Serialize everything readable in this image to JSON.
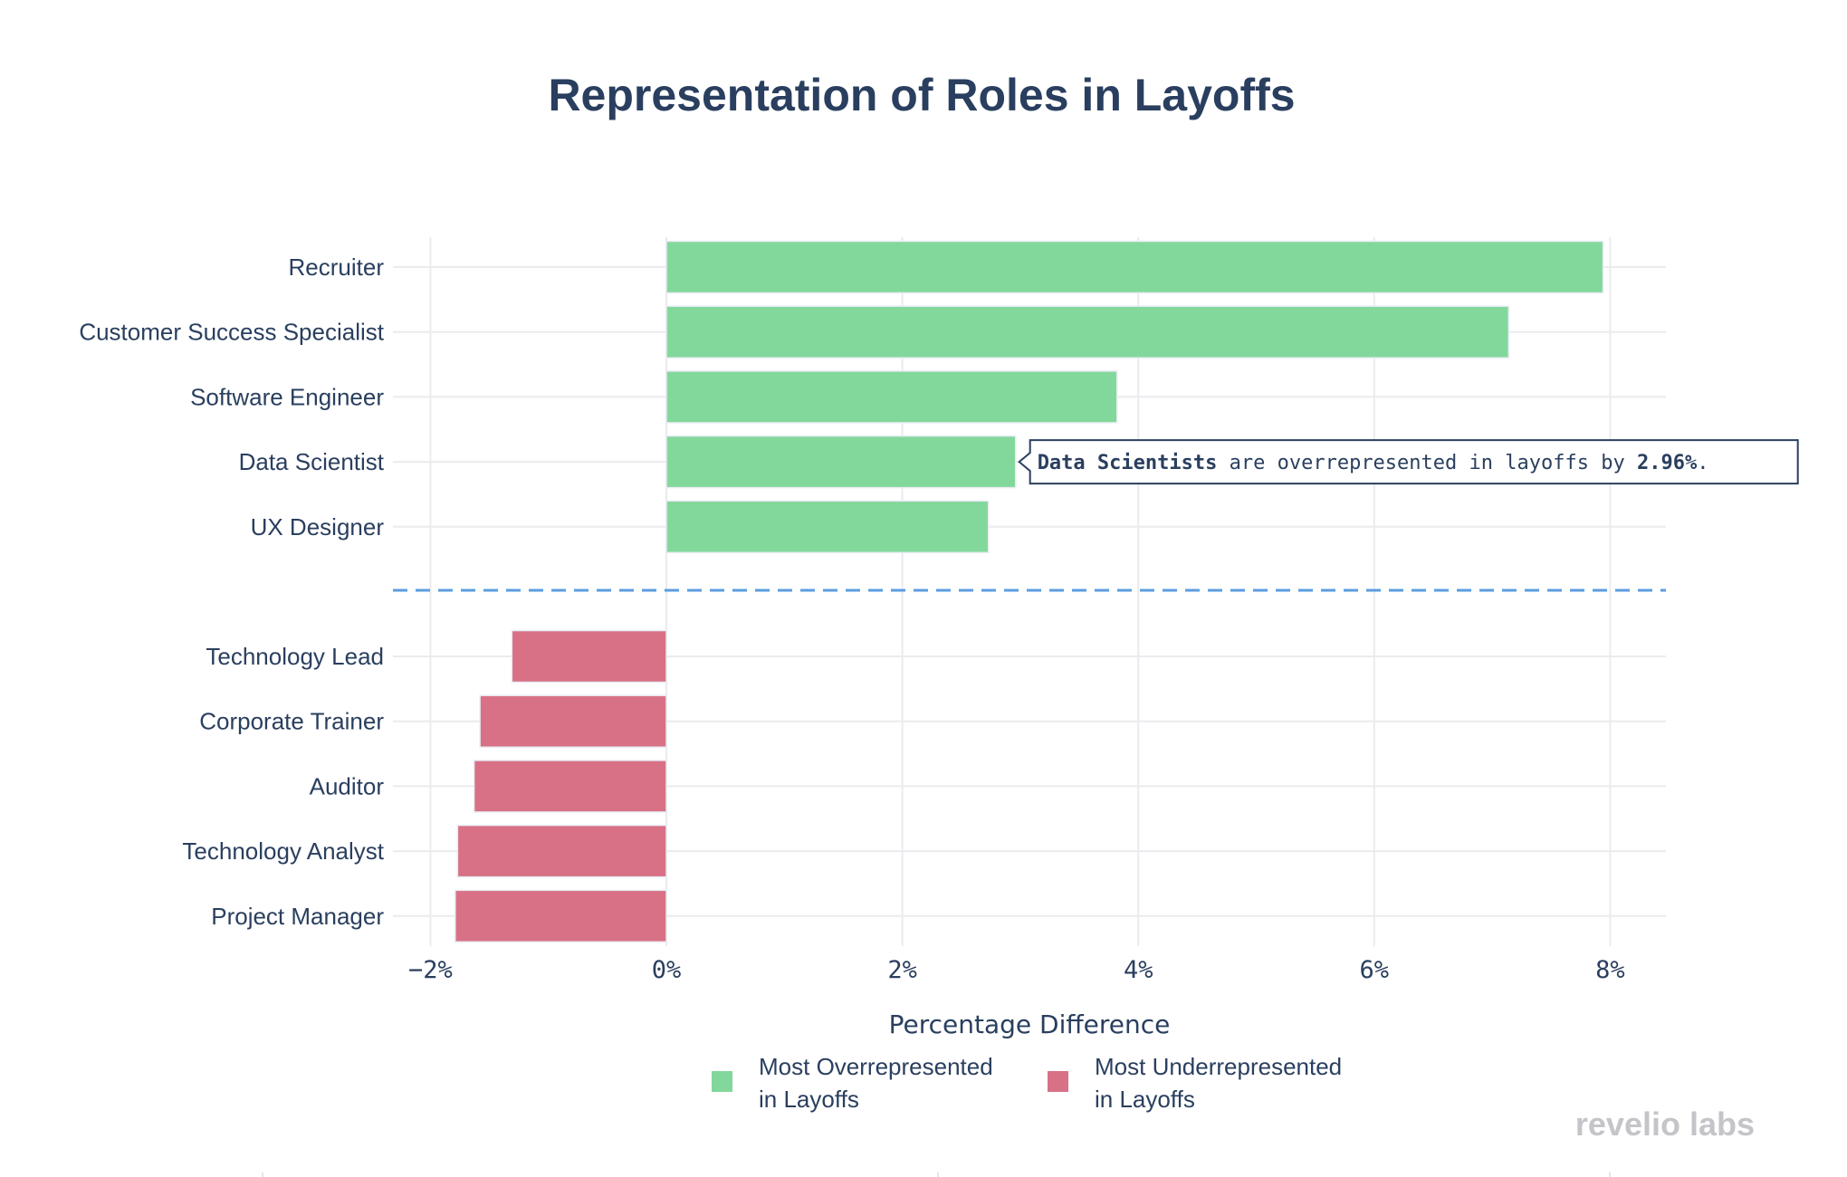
{
  "chart_data": {
    "type": "bar",
    "orientation": "horizontal",
    "title": "Representation of Roles in Layoffs",
    "xlabel": "Percentage Difference",
    "ylabel": "",
    "xlim": [
      -2.5,
      8.5
    ],
    "xticks": [
      -2,
      0,
      2,
      4,
      6,
      8
    ],
    "xtick_labels": [
      "−2%",
      "0%",
      "2%",
      "4%",
      "6%",
      "8%"
    ],
    "grid": true,
    "legend_placement": "bottom",
    "series": [
      {
        "name": "Most Overrepresented in Layoffs",
        "name_lines": [
          "Most Overrepresented",
          "in Layoffs"
        ],
        "color": "#82d89b",
        "categories": [
          "Recruiter",
          "Customer Success Specialist",
          "Software Engineer",
          "Data Scientist",
          "UX Designer"
        ],
        "values": [
          7.94,
          7.14,
          3.82,
          2.96,
          2.73
        ]
      },
      {
        "name": "Most Underrepresented in Layoffs",
        "name_lines": [
          "Most Underrepresented",
          "in Layoffs"
        ],
        "color": "#d87185",
        "categories": [
          "Technology Lead",
          "Corporate Trainer",
          "Auditor",
          "Technology Analyst",
          "Project Manager"
        ],
        "values": [
          -1.31,
          -1.58,
          -1.63,
          -1.77,
          -1.79
        ]
      }
    ],
    "separator_color": "#5b9de0",
    "annotation": {
      "category": "Data Scientist",
      "bold_prefix": "Data Scientists",
      "text": " are overrepresented in layoffs by ",
      "bold_value": "2.96%",
      "suffix": "."
    }
  },
  "watermark": "revelio labs"
}
